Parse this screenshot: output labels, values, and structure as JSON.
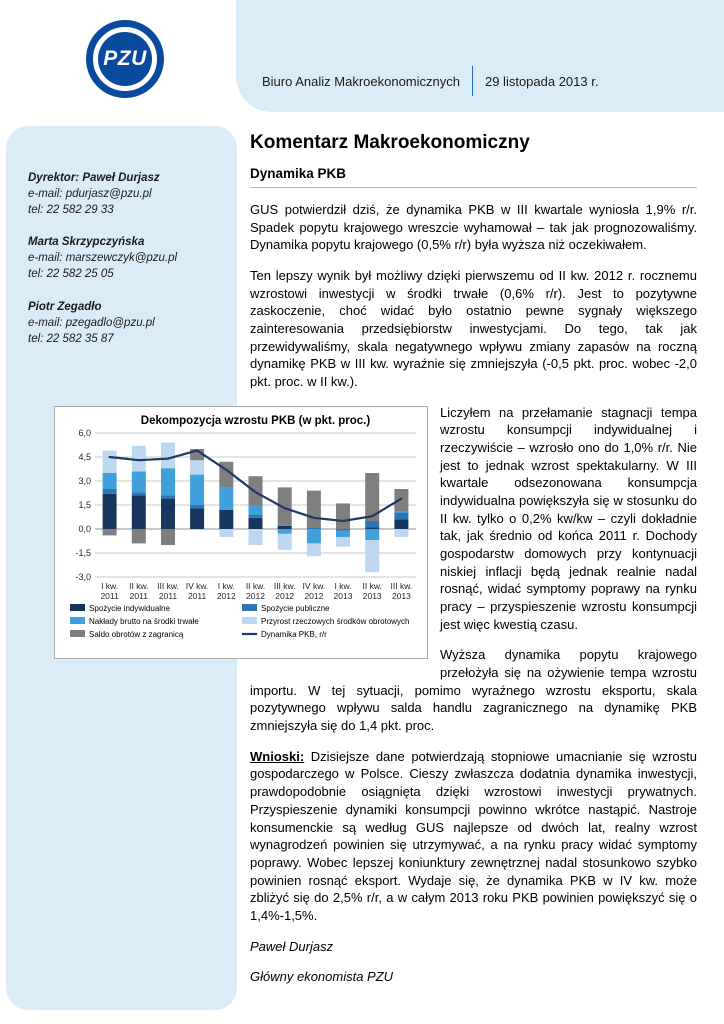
{
  "logo": {
    "text": "PZU"
  },
  "header": {
    "department": "Biuro Analiz Makroekonomicznych",
    "date": "29 listopada 2013 r."
  },
  "sidebar": {
    "contacts": [
      {
        "name": "Dyrektor: Paweł Durjasz",
        "email": "e-mail: pdurjasz@pzu.pl",
        "tel": "tel: 22 582 29 33"
      },
      {
        "name": "Marta Skrzypczyńska",
        "email": "e-mail: marszewczyk@pzu.pl",
        "tel": "tel: 22 582 25 05"
      },
      {
        "name": "Piotr Zegadło",
        "email": "e-mail: pzegadlo@pzu.pl",
        "tel": "tel: 22 582 35 87"
      }
    ]
  },
  "article": {
    "title": "Komentarz Makroekonomiczny",
    "subtitle": "Dynamika PKB",
    "paragraphs": [
      "GUS potwierdził dziś, że dynamika PKB w III kwartale wyniosła 1,9% r/r. Spadek popytu krajowego wreszcie wyhamował – tak jak prognozowaliśmy. Dynamika popytu krajowego (0,5% r/r) była wyższa niż oczekiwałem.",
      "Ten lepszy wynik był możliwy dzięki pierwszemu od II kw. 2012 r. rocznemu wzrostowi inwestycji w środki trwałe (0,6% r/r). Jest to pozytywne zaskoczenie, choć widać było ostatnio pewne sygnały większego zainteresowania przedsiębiorstw inwestycjami. Do tego, tak jak przewidywaliśmy, skala negatywnego wpływu zmiany zapasów na roczną dynamikę PKB w III kw. wyraźnie się zmniejszyła (-0,5 pkt. proc. wobec -2,0 pkt. proc. w II kw.).",
      "Liczyłem na przełamanie stagnacji tempa wzrostu konsumpcji indywidualnej i rzeczywiście – wzrosło ono do 1,0% r/r. Nie jest to jednak wzrost spektakularny. W III kwartale odsezonowana konsumpcja indywidualna powiększyła się w stosunku do II kw. tylko o 0,2% kw/kw – czyli dokładnie tak, jak średnio od końca 2011 r. Dochody gospodarstw domowych przy kontynuacji niskiej inflacji będą jednak realnie nadal rosnąć, widać symptomy poprawy na rynku pracy – przyspieszenie wzrostu konsumpcji jest więc kwestią czasu.",
      "Wyższa dynamika popytu krajowego przełożyła się na ożywienie tempa wzrostu importu. W tej sytuacji, pomimo wyraźnego wzrostu eksportu, skala pozytywnego wpływu salda handlu zagranicznego na dynamikę PKB zmniejszyła się do 1,4 pkt. proc."
    ],
    "wnioski_label": "Wnioski:",
    "wnioski_text": "Dzisiejsze dane potwierdzają stopniowe umacnianie się wzrostu gospodarczego w Polsce. Cieszy zwłaszcza dodatnia dynamika inwestycji, prawdopodobnie osiągnięta dzięki wzrostowi inwestycji prywatnych. Przyspieszenie dynamiki konsumpcji powinno wkrótce nastąpić. Nastroje konsumenckie są według GUS najlepsze od dwóch lat, realny wzrost wynagrodzeń powinien się utrzymywać, a na rynku pracy widać symptomy poprawy. Wobec lepszej koniunktury zewnętrznej nadal stosunkowo szybko powinien rosnąć eksport. Wydaje się, że dynamika PKB w IV kw. może zbliżyć się do 2,5% r/r, a w całym 2013 roku PKB powinien powiększyć się o 1,4%-1,5%.",
    "signature_name": "Paweł Durjasz",
    "signature_role": "Główny ekonomista PZU"
  },
  "chart_data": {
    "type": "bar",
    "stacked": true,
    "title": "Dekompozycja wzrostu PKB (w pkt. proc.)",
    "categories": [
      [
        "I kw.",
        "2011"
      ],
      [
        "II kw.",
        "2011"
      ],
      [
        "III kw.",
        "2011"
      ],
      [
        "IV kw.",
        "2011"
      ],
      [
        "I kw.",
        "2012"
      ],
      [
        "II kw.",
        "2012"
      ],
      [
        "III kw.",
        "2012"
      ],
      [
        "IV kw.",
        "2012"
      ],
      [
        "I kw.",
        "2013"
      ],
      [
        "II kw.",
        "2013"
      ],
      [
        "III kw.",
        "2013"
      ]
    ],
    "ylim": [
      -3,
      6
    ],
    "yticks": [
      -3,
      -1.5,
      0,
      1.5,
      3,
      4.5,
      6
    ],
    "ytick_labels": [
      "-3,0",
      "-1,5",
      "0,0",
      "1,5",
      "3,0",
      "4,5",
      "6,0"
    ],
    "series": [
      {
        "name": "Spożycie indywidualne",
        "color": "#17365d",
        "values": [
          2.2,
          2.1,
          1.9,
          1.3,
          1.2,
          0.7,
          0.2,
          0.0,
          0.0,
          0.1,
          0.6
        ]
      },
      {
        "name": "Spożycie publiczne",
        "color": "#2e75b6",
        "values": [
          0.3,
          0.2,
          0.2,
          0.2,
          0.0,
          0.2,
          0.0,
          0.1,
          -0.1,
          0.4,
          0.4
        ]
      },
      {
        "name": "Nakłady brutto na środki trwałe",
        "color": "#3fa0dc",
        "values": [
          1.0,
          1.3,
          1.7,
          1.9,
          1.4,
          0.6,
          -0.3,
          -0.9,
          -0.4,
          -0.7,
          0.1
        ]
      },
      {
        "name": "Przyrost rzeczowych środków obrotowych",
        "color": "#bdd7ee",
        "values": [
          1.4,
          1.6,
          1.6,
          0.9,
          -0.5,
          -1.0,
          -1.0,
          -0.8,
          -0.6,
          -2.0,
          -0.5
        ]
      },
      {
        "name": "Saldo obrotów z zagranicą",
        "color": "#7f7f7f",
        "values": [
          -0.4,
          -0.9,
          -1.0,
          0.7,
          1.6,
          1.8,
          2.4,
          2.3,
          1.6,
          3.0,
          1.4
        ]
      }
    ],
    "line_series": {
      "name": "Dynamika PKB, r/r",
      "color": "#1f3864",
      "values": [
        4.5,
        4.3,
        4.4,
        4.9,
        3.7,
        2.3,
        1.3,
        0.7,
        0.5,
        0.8,
        1.9
      ]
    },
    "legend_position": "bottom",
    "grid": true
  }
}
